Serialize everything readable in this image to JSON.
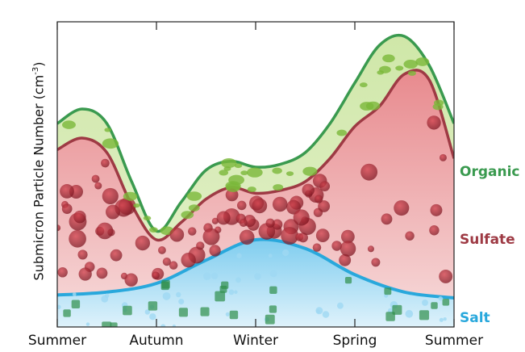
{
  "chart_data": {
    "type": "area",
    "title": "",
    "xlabel": "",
    "ylabel": "Submicron Particle Number (cm",
    "ylabel_sup": "-3",
    "ylabel_tail": ")",
    "categories": [
      "Summer",
      "Autumn",
      "Winter",
      "Spring",
      "Summer"
    ],
    "grid": false,
    "y_ticks_shown": false,
    "series": [
      {
        "name": "Salt",
        "color": "#29a8dc",
        "x": [
          0,
          0.5,
          1,
          1.5,
          2,
          2.5,
          3,
          3.5,
          4
        ],
        "values": [
          0.11,
          0.12,
          0.15,
          0.23,
          0.3,
          0.27,
          0.18,
          0.12,
          0.1
        ]
      },
      {
        "name": "Sulfate",
        "color": "#9e3a44",
        "x": [
          0,
          0.25,
          0.5,
          0.75,
          1,
          1.25,
          1.5,
          1.75,
          2,
          2.25,
          2.5,
          2.75,
          3,
          3.25,
          3.5,
          3.75,
          4
        ],
        "values": [
          0.61,
          0.65,
          0.6,
          0.42,
          0.3,
          0.36,
          0.44,
          0.48,
          0.46,
          0.47,
          0.5,
          0.58,
          0.69,
          0.76,
          0.87,
          0.85,
          0.58
        ]
      },
      {
        "name": "Organic",
        "color": "#3a9a4f",
        "x": [
          0,
          0.25,
          0.5,
          0.75,
          1,
          1.25,
          1.5,
          1.75,
          2,
          2.25,
          2.5,
          2.75,
          3,
          3.25,
          3.5,
          3.75,
          4
        ],
        "values": [
          0.7,
          0.75,
          0.7,
          0.5,
          0.33,
          0.43,
          0.54,
          0.57,
          0.55,
          0.56,
          0.6,
          0.7,
          0.84,
          0.97,
          1.0,
          0.9,
          0.7
        ]
      }
    ],
    "ylim": [
      0,
      1.05
    ],
    "xlim": [
      0,
      4
    ]
  }
}
